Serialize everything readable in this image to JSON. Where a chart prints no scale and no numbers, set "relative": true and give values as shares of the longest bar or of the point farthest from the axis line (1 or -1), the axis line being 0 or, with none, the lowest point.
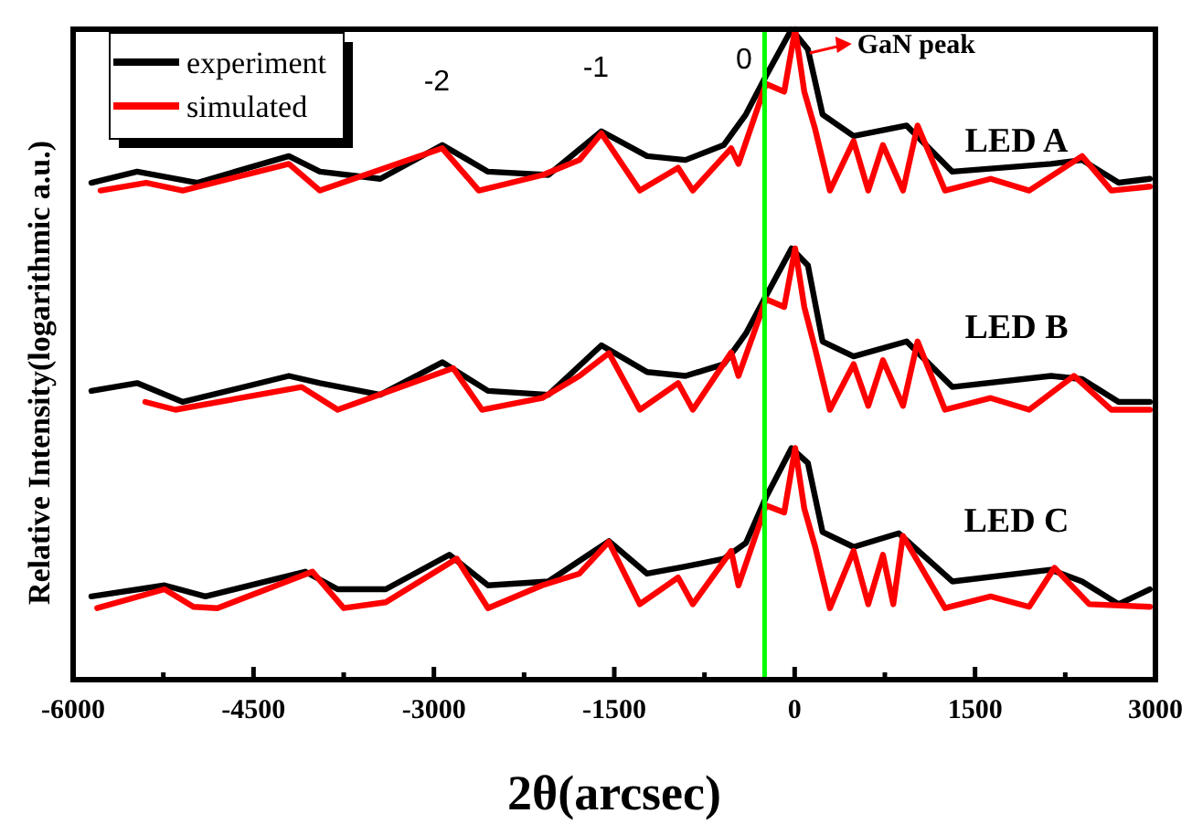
{
  "chart_data": {
    "type": "line",
    "relative": true,
    "xlabel": "2θ(arcsec)",
    "ylabel": "Relative Intensity(logarithmic a.u.)",
    "xlim": [
      -6000,
      3000
    ],
    "xticks": [
      -6000,
      {
        "value": -5250,
        "label": null
      },
      -4500,
      {
        "value": -3750,
        "label": null
      },
      -3000,
      {
        "value": -2250,
        "label": null
      },
      -1500,
      {
        "value": -750,
        "label": null
      },
      0,
      {
        "value": 750,
        "label": null
      },
      1500,
      {
        "value": 2250,
        "label": null
      },
      3000
    ],
    "tick_labels": "x",
    "legend": "top left",
    "marker": "none",
    "line_style": "solid",
    "grid": false,
    "series": [
      {
        "name": "experiment",
        "color": "#000000",
        "x": [
          -5848,
          -5468,
          -4966,
          -4206,
          -3948,
          -3446,
          -2930,
          -2550,
          -2048,
          -1607,
          -1227,
          -908,
          -589,
          -406,
          -239,
          -26,
          110,
          232,
          490,
          931,
          1311,
          2132,
          2390,
          2694,
          2953
        ],
        "values": [
          0.764,
          0.781,
          0.764,
          0.805,
          0.781,
          0.77,
          0.822,
          0.781,
          0.776,
          0.843,
          0.805,
          0.799,
          0.822,
          0.869,
          0.928,
          1,
          0.969,
          0.869,
          0.836,
          0.852,
          0.781,
          0.793,
          0.799,
          0.764,
          0.77
        ]
      },
      {
        "name": "simulated",
        "color": "#ff0000",
        "x": [
          -5772,
          -5392,
          -5088,
          -4206,
          -3948,
          -2930,
          -2626,
          -2094,
          -1790,
          -1607,
          -1288,
          -969,
          -847,
          -528,
          -467,
          -239,
          -87,
          4,
          80,
          171,
          293,
          490,
          612,
          734,
          901,
          1022,
          1250,
          1630,
          1950,
          2390,
          2634,
          2953
        ],
        "values": [
          0.752,
          0.764,
          0.752,
          0.793,
          0.752,
          0.817,
          0.752,
          0.776,
          0.799,
          0.84,
          0.752,
          0.787,
          0.752,
          0.817,
          0.793,
          0.916,
          0.904,
          1,
          0.904,
          0.846,
          0.752,
          0.828,
          0.752,
          0.822,
          0.752,
          0.852,
          0.752,
          0.77,
          0.752,
          0.805,
          0.752,
          0.758
        ]
      },
      {
        "color": "#000000",
        "x": [
          -5848,
          -5468,
          -5088,
          -4206,
          -3948,
          -3446,
          -2930,
          -2550,
          -2048,
          -1607,
          -1227,
          -908,
          -589,
          -406,
          -239,
          -26,
          110,
          232,
          490,
          931,
          1311,
          2132,
          2390,
          2694,
          2953
        ],
        "values": [
          0.444,
          0.456,
          0.427,
          0.467,
          0.456,
          0.438,
          0.488,
          0.444,
          0.438,
          0.514,
          0.473,
          0.467,
          0.485,
          0.532,
          0.59,
          0.663,
          0.637,
          0.52,
          0.497,
          0.52,
          0.45,
          0.467,
          0.462,
          0.427,
          0.427
        ]
      },
      {
        "color": "#ff0000",
        "x": [
          -5400,
          -5150,
          -4100,
          -3800,
          -2840,
          -2600,
          -2100,
          -1790,
          -1544,
          -1288,
          -969,
          -847,
          -528,
          -467,
          -239,
          -87,
          4,
          80,
          171,
          293,
          490,
          612,
          734,
          901,
          1022,
          1250,
          1630,
          1950,
          2322,
          2634,
          2953
        ],
        "values": [
          0.427,
          0.415,
          0.45,
          0.415,
          0.479,
          0.415,
          0.433,
          0.467,
          0.502,
          0.415,
          0.456,
          0.415,
          0.503,
          0.467,
          0.585,
          0.573,
          0.663,
          0.573,
          0.508,
          0.415,
          0.485,
          0.421,
          0.491,
          0.421,
          0.52,
          0.415,
          0.433,
          0.415,
          0.467,
          0.415,
          0.415
        ]
      },
      {
        "color": "#000000",
        "x": [
          -5848,
          -5240,
          -4900,
          -4070,
          -3800,
          -3400,
          -2871,
          -2550,
          -2048,
          -1544,
          -1227,
          -908,
          -589,
          -406,
          -239,
          -26,
          110,
          232,
          490,
          866,
          1311,
          2132,
          2390,
          2694,
          2953
        ],
        "values": [
          0.128,
          0.145,
          0.128,
          0.166,
          0.139,
          0.139,
          0.192,
          0.145,
          0.151,
          0.213,
          0.163,
          0.174,
          0.186,
          0.21,
          0.28,
          0.356,
          0.333,
          0.227,
          0.204,
          0.225,
          0.151,
          0.169,
          0.151,
          0.116,
          0.139
        ]
      },
      {
        "color": "#ff0000",
        "x": [
          -5800,
          -5240,
          -5000,
          -4800,
          -4010,
          -3750,
          -3400,
          -2810,
          -2550,
          -2100,
          -1790,
          -1546,
          -1288,
          -969,
          -847,
          -528,
          -467,
          -239,
          -87,
          4,
          80,
          171,
          293,
          490,
          612,
          734,
          820,
          900,
          1250,
          1630,
          1950,
          2160,
          2450,
          2953
        ],
        "values": [
          0.11,
          0.139,
          0.112,
          0.11,
          0.166,
          0.11,
          0.119,
          0.186,
          0.11,
          0.145,
          0.163,
          0.212,
          0.116,
          0.157,
          0.116,
          0.198,
          0.145,
          0.268,
          0.257,
          0.356,
          0.263,
          0.204,
          0.11,
          0.198,
          0.116,
          0.192,
          0.116,
          0.221,
          0.11,
          0.128,
          0.112,
          0.172,
          0.116,
          0.112
        ]
      }
    ],
    "ref_lines": [
      {
        "axis": "x",
        "value": -250,
        "color": "#00ff00"
      }
    ],
    "annotations": [
      {
        "text": "-2",
        "x": -2930,
        "y": 0.822
      },
      {
        "text": "-1",
        "x": -1607,
        "y": 0.843
      },
      {
        "text": "0",
        "x": -239,
        "y": 0.928
      },
      {
        "text": "GaN peak",
        "x": 110,
        "y": 0.969
      },
      "LED A",
      "LED B",
      "LED C"
    ]
  }
}
